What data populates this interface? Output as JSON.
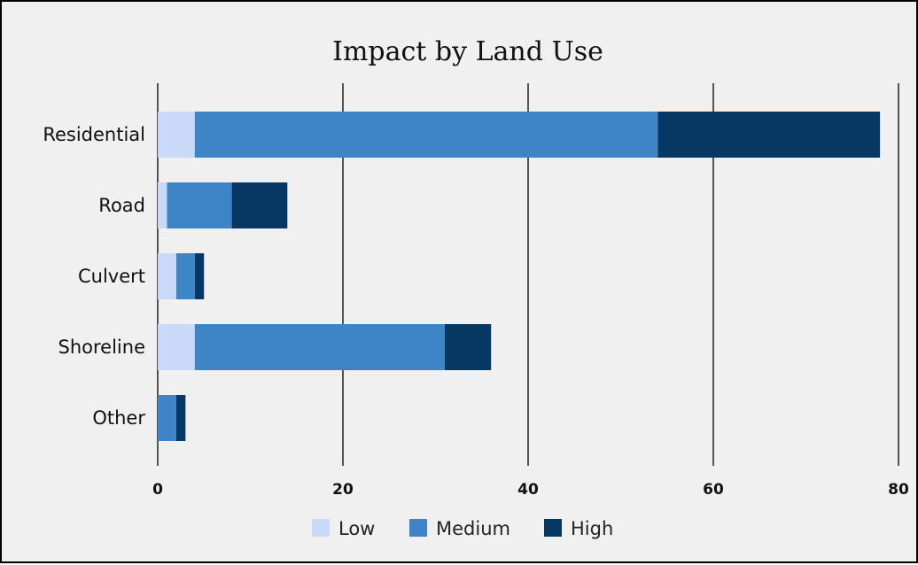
{
  "chart_data": {
    "type": "bar",
    "orientation": "horizontal",
    "stacked": true,
    "title": "Impact by Land Use",
    "xlabel": "",
    "ylabel": "",
    "categories": [
      "Residential",
      "Road",
      "Culvert",
      "Shoreline",
      "Other"
    ],
    "series": [
      {
        "name": "Low",
        "color": "#c9daf8",
        "values": [
          4,
          1,
          2,
          4,
          0
        ]
      },
      {
        "name": "Medium",
        "color": "#3d85c6",
        "values": [
          50,
          7,
          2,
          27,
          2
        ]
      },
      {
        "name": "High",
        "color": "#073763",
        "values": [
          24,
          6,
          1,
          5,
          1
        ]
      }
    ],
    "xlim": [
      0,
      80
    ],
    "xticks": [
      "0",
      "20",
      "40",
      "60",
      "80"
    ],
    "grid": "vertical",
    "legend": "bottom"
  }
}
